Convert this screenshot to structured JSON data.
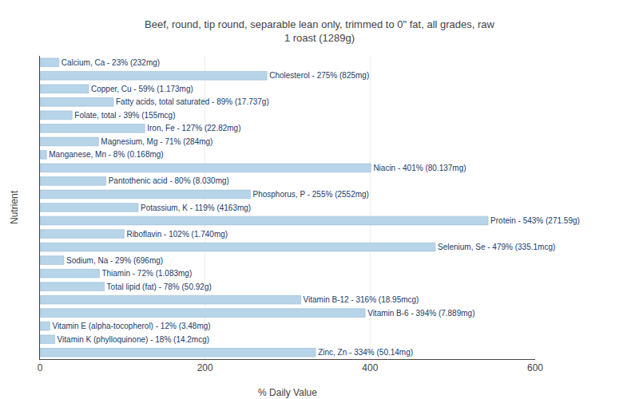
{
  "chart_data": {
    "type": "bar",
    "orientation": "horizontal",
    "title": "Beef, round, tip round, separable lean only, trimmed to 0\" fat, all grades, raw\n1 roast (1289g)",
    "xlabel": "% Daily Value",
    "ylabel": "Nutrient",
    "color": "#b8d4e8",
    "xlim": [
      0,
      600
    ],
    "xticks": [
      0,
      200,
      400,
      600
    ],
    "grid": true,
    "tick_labels": "x",
    "data_labels": true,
    "categories": [
      "Calcium, Ca - 23% (232mg)",
      "Cholesterol - 275% (825mg)",
      "Copper, Cu - 59% (1.173mg)",
      "Fatty acids, total saturated - 89% (17.737g)",
      "Folate, total - 39% (155mcg)",
      "Iron, Fe - 127% (22.82mg)",
      "Magnesium, Mg - 71% (284mg)",
      "Manganese, Mn - 8% (0.168mg)",
      "Niacin - 401% (80.137mg)",
      "Pantothenic acid - 80% (8.030mg)",
      "Phosphorus, P - 255% (2552mg)",
      "Potassium, K - 119% (4163mg)",
      "Protein - 543% (271.59g)",
      "Riboflavin - 102% (1.740mg)",
      "Selenium, Se - 479% (335.1mcg)",
      "Sodium, Na - 29% (696mg)",
      "Thiamin - 72% (1.083mg)",
      "Total lipid (fat) - 78% (50.92g)",
      "Vitamin B-12 - 316% (18.95mcg)",
      "Vitamin B-6 - 394% (7.889mg)",
      "Vitamin E (alpha-tocopherol) - 12% (3.48mg)",
      "Vitamin K (phylloquinone) - 18% (14.2mcg)",
      "Zinc, Zn - 334% (50.14mg)"
    ],
    "values": [
      23,
      275,
      59,
      89,
      39,
      127,
      71,
      8,
      401,
      80,
      255,
      119,
      543,
      102,
      479,
      29,
      72,
      78,
      316,
      394,
      12,
      18,
      334
    ],
    "value_labels": [
      "Calcium, Ca - 23% (232mg)",
      "Cholesterol - 275% (825mg)",
      "Copper, Cu - 59% (1.173mg)",
      "Fatty acids, total saturated - 89% (17.737g)",
      "Folate, total - 39% (155mcg)",
      "Iron, Fe - 127% (22.82mg)",
      "Magnesium, Mg - 71% (284mg)",
      "Manganese, Mn - 8% (0.168mg)",
      "Niacin - 401% (80.137mg)",
      "Pantothenic acid - 80% (8.030mg)",
      "Phosphorus, P - 255% (2552mg)",
      "Potassium, K - 119% (4163mg)",
      "Protein - 543% (271.59g)",
      "Riboflavin - 102% (1.740mg)",
      "Selenium, Se - 479% (335.1mcg)",
      "Sodium, Na - 29% (696mg)",
      "Thiamin - 72% (1.083mg)",
      "Total lipid (fat) - 78% (50.92g)",
      "Vitamin B-12 - 316% (18.95mcg)",
      "Vitamin B-6 - 394% (7.889mg)",
      "Vitamin E (alpha-tocopherol) - 12% (3.48mg)",
      "Vitamin K (phylloquinone) - 18% (14.2mcg)",
      "Zinc, Zn - 334% (50.14mg)"
    ]
  }
}
